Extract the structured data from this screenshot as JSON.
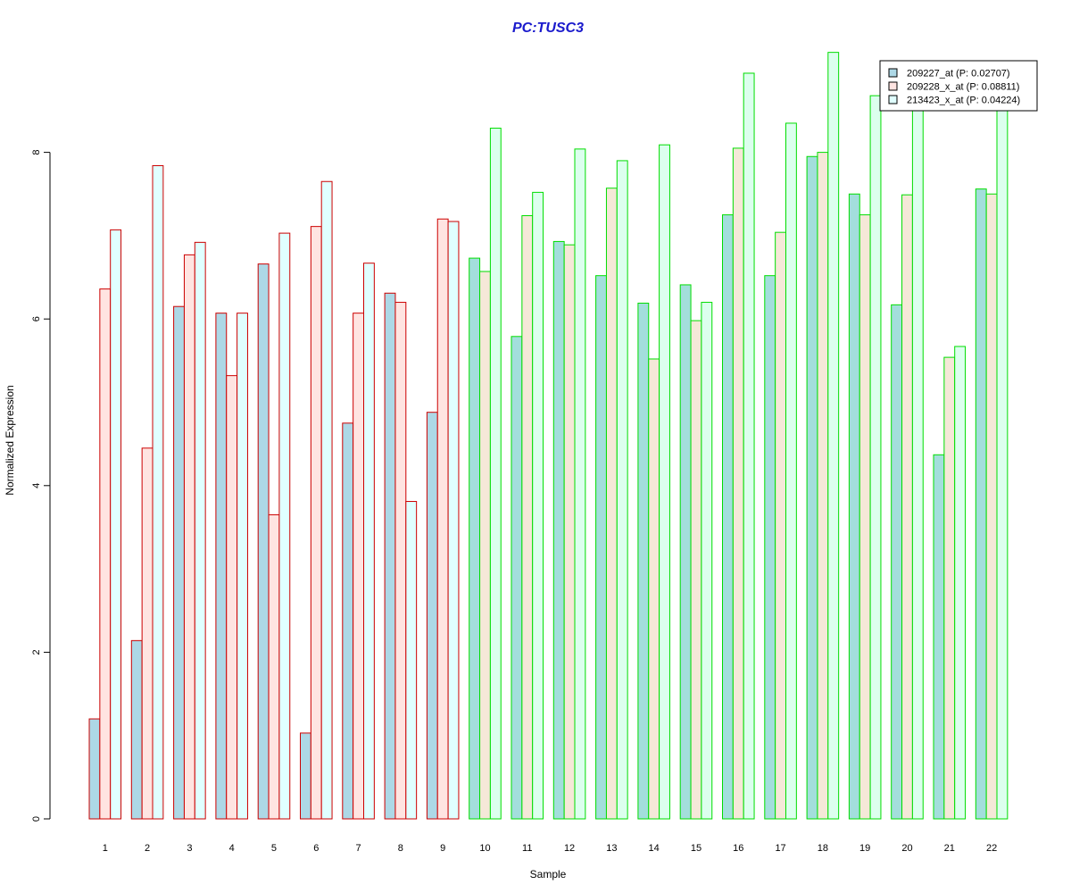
{
  "chart_data": {
    "type": "bar",
    "title": "PC:TUSC3",
    "xlabel": "Sample",
    "ylabel": "Normalized Expression",
    "ylim": [
      0,
      9.3
    ],
    "yticks": [
      "0",
      "2",
      "4",
      "6",
      "8"
    ],
    "categories": [
      "1",
      "2",
      "3",
      "4",
      "5",
      "6",
      "7",
      "8",
      "9",
      "10",
      "11",
      "12",
      "13",
      "14",
      "15",
      "16",
      "17",
      "18",
      "19",
      "20",
      "21",
      "22"
    ],
    "series": [
      {
        "name": "209227_at (P: 0.02707)",
        "values": [
          1.2,
          2.14,
          6.15,
          6.07,
          6.66,
          1.03,
          4.75,
          6.31,
          4.88,
          6.73,
          5.79,
          6.93,
          6.52,
          6.19,
          6.41,
          7.25,
          6.52,
          7.95,
          7.5,
          6.17,
          4.37,
          7.56
        ]
      },
      {
        "name": "209228_x_at (P: 0.08811)",
        "values": [
          6.36,
          4.45,
          6.77,
          5.32,
          3.65,
          7.11,
          6.07,
          6.2,
          7.2,
          6.57,
          7.24,
          6.89,
          7.57,
          5.52,
          5.98,
          8.05,
          7.04,
          8.0,
          7.25,
          7.49,
          5.54,
          7.5
        ]
      },
      {
        "name": "213423_x_at (P: 0.04224)",
        "values": [
          7.07,
          7.84,
          6.92,
          6.07,
          7.03,
          7.65,
          6.67,
          3.81,
          7.17,
          8.29,
          7.52,
          8.04,
          7.9,
          8.09,
          6.2,
          8.95,
          8.35,
          9.2,
          8.68,
          8.62,
          5.67,
          8.6
        ]
      }
    ],
    "group_borders": {
      "samples_1_to_9": "#cc0000",
      "samples_10_to_22": "#00dd00"
    },
    "fill_colors": [
      "#add8e6",
      "#ffe4e1",
      "#e0ffff"
    ],
    "fill_colors_group2": [
      "#a3dedc",
      "#f5e8d8",
      "#dcffee"
    ],
    "title_color": "#1a1acc",
    "legend": {
      "placement": "top-right"
    },
    "grid": false
  }
}
